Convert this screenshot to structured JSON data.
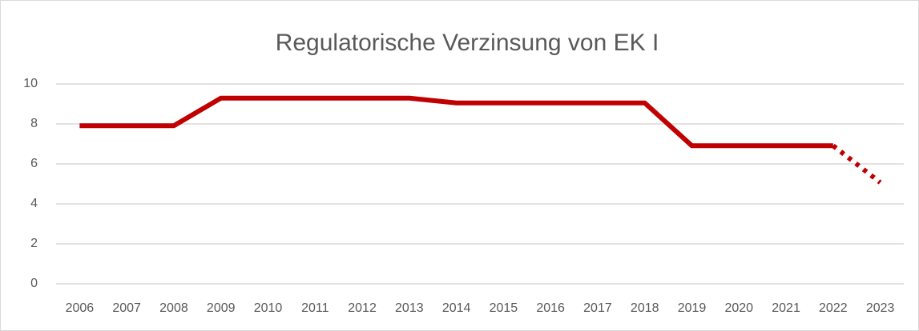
{
  "chart_data": {
    "type": "line",
    "title": "Regulatorische Verzinsung von EK I",
    "categories": [
      "2006",
      "2007",
      "2008",
      "2009",
      "2010",
      "2011",
      "2012",
      "2013",
      "2014",
      "2015",
      "2016",
      "2017",
      "2018",
      "2019",
      "2020",
      "2021",
      "2022",
      "2023"
    ],
    "series": [
      {
        "color": "#c00000",
        "style": "solid",
        "values": [
          7.91,
          7.91,
          7.91,
          9.29,
          9.29,
          9.29,
          9.29,
          9.29,
          9.05,
          9.05,
          9.05,
          9.05,
          9.05,
          6.91,
          6.91,
          6.91,
          6.91,
          null
        ]
      },
      {
        "color": "#c00000",
        "style": "dotted",
        "values": [
          null,
          null,
          null,
          null,
          null,
          null,
          null,
          null,
          null,
          null,
          null,
          null,
          null,
          null,
          null,
          null,
          6.91,
          5.07
        ]
      }
    ],
    "ylim": [
      0,
      10
    ],
    "yticks": [
      0,
      2,
      4,
      6,
      8,
      10
    ],
    "grid": true
  }
}
